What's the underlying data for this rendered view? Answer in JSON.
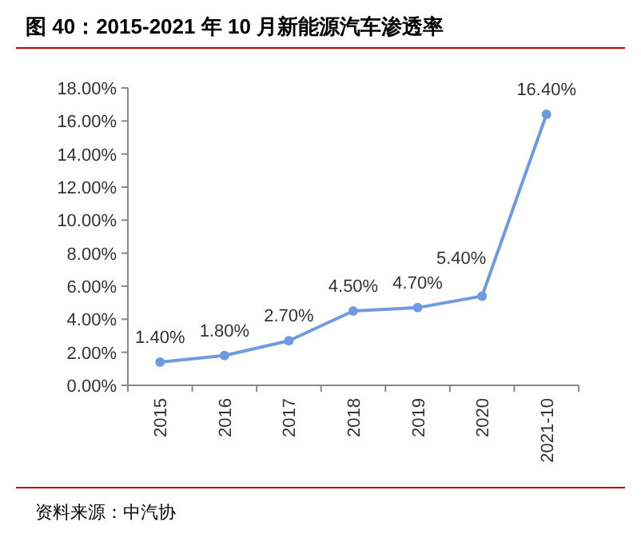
{
  "chart_data": {
    "type": "line",
    "title": "图 40：2015-2021 年 10 月新能源汽车渗透率",
    "categories": [
      "2015",
      "2016",
      "2017",
      "2018",
      "2019",
      "2020",
      "2021-10"
    ],
    "series": [
      {
        "color": "#6f9ae0",
        "values": [
          1.4,
          1.8,
          2.7,
          4.5,
          4.7,
          5.4,
          16.4
        ],
        "value_labels": [
          "1.40%",
          "1.80%",
          "2.70%",
          "4.50%",
          "4.70%",
          "5.40%",
          "16.40%"
        ]
      }
    ],
    "ylim": [
      0,
      18
    ],
    "yticks": [
      {
        "value": 0,
        "label": "0.00%"
      },
      {
        "value": 2,
        "label": "2.00%"
      },
      {
        "value": 4,
        "label": "4.00%"
      },
      {
        "value": 6,
        "label": "6.00%"
      },
      {
        "value": 8,
        "label": "8.00%"
      },
      {
        "value": 10,
        "label": "10.00%"
      },
      {
        "value": 12,
        "label": "12.00%"
      },
      {
        "value": 14,
        "label": "14.00%"
      },
      {
        "value": 16,
        "label": "16.00%"
      },
      {
        "value": 18,
        "label": "18.00%"
      }
    ],
    "marker": "circle",
    "line_style": "solid",
    "grid": false,
    "annotations": [
      "资料来源：中汽协"
    ]
  }
}
